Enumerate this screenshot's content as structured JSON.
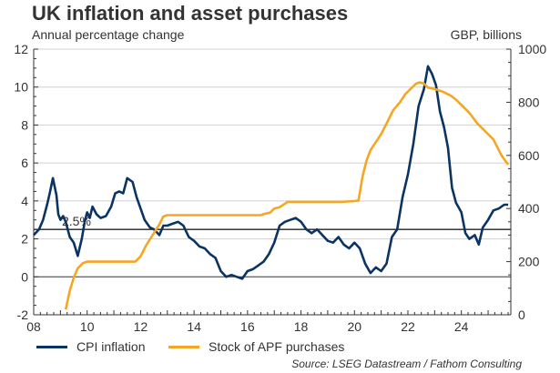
{
  "chart_data": {
    "type": "line",
    "title": "UK inflation and asset purchases",
    "ylabel_left": "Annual percentage change",
    "ylabel_right": "GBP, billions",
    "xlabel": "",
    "x_ticks": [
      "08",
      "10",
      "12",
      "14",
      "16",
      "18",
      "20",
      "22",
      "24"
    ],
    "x_tick_values": [
      2008,
      2010,
      2012,
      2014,
      2016,
      2018,
      2020,
      2022,
      2024
    ],
    "xlim": [
      2008,
      2025.85
    ],
    "y_left_ticks": [
      "-2",
      "0",
      "2",
      "4",
      "6",
      "8",
      "10",
      "12"
    ],
    "y_left_tick_values": [
      -2,
      0,
      2,
      4,
      6,
      8,
      10,
      12
    ],
    "ylim_left": [
      -2,
      12
    ],
    "y_right_ticks": [
      "0",
      "200",
      "400",
      "600",
      "800",
      "1000"
    ],
    "y_right_tick_values": [
      0,
      200,
      400,
      600,
      800,
      1000
    ],
    "ylim_right": [
      0,
      1000
    ],
    "grid": true,
    "reference_line": {
      "value": 2.5,
      "label": "2.5%",
      "axis": "left"
    },
    "legend_position": "bottom",
    "series": [
      {
        "name": "CPI inflation",
        "axis": "left",
        "color": "#0b3463",
        "x": [
          2008.0,
          2008.2,
          2008.35,
          2008.5,
          2008.6,
          2008.72,
          2008.85,
          2008.92,
          2009.0,
          2009.1,
          2009.2,
          2009.35,
          2009.5,
          2009.65,
          2009.8,
          2009.92,
          2010.0,
          2010.1,
          2010.2,
          2010.35,
          2010.5,
          2010.7,
          2010.9,
          2011.05,
          2011.2,
          2011.35,
          2011.5,
          2011.7,
          2011.85,
          2012.0,
          2012.15,
          2012.35,
          2012.5,
          2012.7,
          2012.85,
          2013.0,
          2013.2,
          2013.4,
          2013.6,
          2013.8,
          2014.0,
          2014.2,
          2014.4,
          2014.6,
          2014.8,
          2015.0,
          2015.2,
          2015.4,
          2015.6,
          2015.8,
          2016.0,
          2016.2,
          2016.4,
          2016.6,
          2016.8,
          2017.0,
          2017.2,
          2017.4,
          2017.6,
          2017.8,
          2018.0,
          2018.2,
          2018.4,
          2018.6,
          2018.8,
          2019.0,
          2019.2,
          2019.4,
          2019.6,
          2019.8,
          2020.0,
          2020.2,
          2020.4,
          2020.6,
          2020.8,
          2021.0,
          2021.2,
          2021.4,
          2021.6,
          2021.8,
          2022.0,
          2022.2,
          2022.4,
          2022.6,
          2022.75,
          2022.9,
          2023.05,
          2023.2,
          2023.35,
          2023.5,
          2023.65,
          2023.8,
          2024.0,
          2024.15,
          2024.3,
          2024.5,
          2024.65,
          2024.8,
          2025.0,
          2025.2,
          2025.4,
          2025.6,
          2025.75
        ],
        "values": [
          2.2,
          2.5,
          3.0,
          3.8,
          4.4,
          5.2,
          4.3,
          3.3,
          3.0,
          3.2,
          2.9,
          2.1,
          1.8,
          1.1,
          2.0,
          3.0,
          3.4,
          3.1,
          3.7,
          3.3,
          3.1,
          3.2,
          3.7,
          4.4,
          4.5,
          4.4,
          5.2,
          5.0,
          4.2,
          3.6,
          3.0,
          2.6,
          2.5,
          2.2,
          2.7,
          2.7,
          2.8,
          2.9,
          2.7,
          2.1,
          1.9,
          1.6,
          1.5,
          1.2,
          1.0,
          0.3,
          0.0,
          0.1,
          0.0,
          -0.1,
          0.3,
          0.4,
          0.6,
          0.8,
          1.2,
          1.8,
          2.7,
          2.9,
          3.0,
          3.1,
          2.9,
          2.5,
          2.3,
          2.5,
          2.2,
          1.9,
          1.8,
          2.1,
          1.7,
          1.5,
          1.8,
          1.5,
          0.7,
          0.2,
          0.5,
          0.3,
          0.7,
          2.1,
          2.5,
          4.2,
          5.4,
          7.0,
          9.0,
          9.9,
          11.1,
          10.7,
          10.1,
          8.7,
          7.9,
          6.8,
          4.7,
          3.9,
          3.4,
          2.3,
          2.0,
          2.2,
          1.7,
          2.6,
          3.0,
          3.5,
          3.6,
          3.8,
          3.8
        ]
      },
      {
        "name": "Stock of APF purchases",
        "axis": "right",
        "color": "#f5a623",
        "x": [
          2009.2,
          2009.35,
          2009.5,
          2009.65,
          2009.85,
          2010.0,
          2010.15,
          2010.5,
          2011.0,
          2011.5,
          2011.8,
          2012.0,
          2012.2,
          2012.45,
          2012.7,
          2012.85,
          2013.0,
          2014.0,
          2015.0,
          2016.0,
          2016.5,
          2016.65,
          2016.85,
          2017.0,
          2017.2,
          2017.5,
          2018.0,
          2019.0,
          2019.5,
          2020.0,
          2020.15,
          2020.3,
          2020.45,
          2020.6,
          2020.8,
          2021.0,
          2021.2,
          2021.45,
          2021.7,
          2021.9,
          2022.1,
          2022.3,
          2022.45,
          2022.6,
          2022.75,
          2023.0,
          2023.3,
          2023.6,
          2023.8,
          2024.0,
          2024.3,
          2024.6,
          2024.9,
          2025.2,
          2025.5,
          2025.75
        ],
        "values": [
          20,
          90,
          140,
          175,
          195,
          200,
          200,
          200,
          200,
          200,
          200,
          220,
          260,
          300,
          340,
          370,
          375,
          375,
          375,
          375,
          375,
          380,
          385,
          400,
          405,
          425,
          425,
          425,
          425,
          428,
          430,
          520,
          580,
          620,
          650,
          680,
          720,
          770,
          800,
          830,
          850,
          870,
          875,
          870,
          855,
          850,
          840,
          825,
          810,
          790,
          760,
          720,
          690,
          660,
          600,
          565
        ]
      }
    ]
  }
}
